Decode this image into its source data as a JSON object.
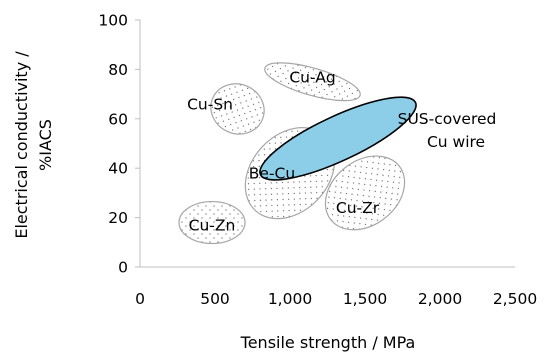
{
  "chart_data": {
    "type": "scatter",
    "xlabel": "Tensile strength / MPa",
    "ylabel": "Electrical conductivity / %IACS",
    "ylabel_lines": [
      "Electrical conductivity /",
      "%IACS"
    ],
    "xlim": [
      0,
      2500
    ],
    "ylim": [
      0,
      100
    ],
    "x_ticks": [
      "0",
      "500",
      "1,000",
      "1,500",
      "2,000",
      "2,500"
    ],
    "y_ticks": [
      "0",
      "20",
      "40",
      "60",
      "80",
      "100"
    ],
    "x_tick_values": [
      0,
      500,
      1000,
      1500,
      2000,
      2500
    ],
    "y_tick_values": [
      0,
      20,
      40,
      60,
      80,
      100
    ],
    "grid": false,
    "legend": "none",
    "colors": {
      "highlight_fill": "#8ccde8",
      "highlight_stroke": "#000000",
      "region_stroke": "#a6a6a6",
      "axis_stroke": "#bfbfbf"
    },
    "regions": [
      {
        "label": "Cu-Ag",
        "cx": 1150,
        "cy": 75,
        "rx": 330,
        "ry": 5.5,
        "angle_deg": 16,
        "style": "dotted"
      },
      {
        "label": "Cu-Sn",
        "cx": 650,
        "cy": 64,
        "rx": 180,
        "ry": 10,
        "angle_deg": 25,
        "style": "dotted"
      },
      {
        "label": "Be-Cu",
        "cx": 1000,
        "cy": 38,
        "rx": 340,
        "ry": 15.5,
        "angle_deg": -47,
        "style": "dotted"
      },
      {
        "label": "Cu-Zr",
        "cx": 1500,
        "cy": 30,
        "rx": 290,
        "ry": 13,
        "angle_deg": -38,
        "style": "dotted"
      },
      {
        "label": "Cu-Zn",
        "cx": 480,
        "cy": 18,
        "rx": 220,
        "ry": 8.5,
        "angle_deg": 0,
        "style": "dotted"
      },
      {
        "label": "SUS-covered Cu wire",
        "label_lines": [
          "SUS-covered",
          "Cu wire"
        ],
        "cx": 1320,
        "cy": 52,
        "rx": 570,
        "ry": 9,
        "angle_deg": -25,
        "style": "filled"
      }
    ]
  }
}
